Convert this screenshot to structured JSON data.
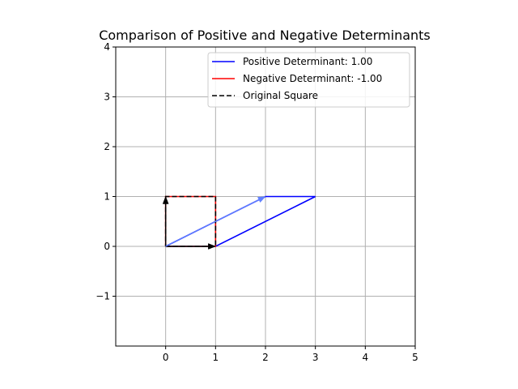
{
  "chart_data": {
    "type": "line",
    "title": "Comparison of Positive and Negative Determinants",
    "xlabel": "",
    "ylabel": "",
    "xlim": [
      -1,
      5
    ],
    "ylim": [
      -2,
      4
    ],
    "xticks": [
      0,
      1,
      2,
      3,
      4,
      5
    ],
    "yticks": [
      -1,
      0,
      1,
      2,
      3,
      4
    ],
    "xtick_labels": [
      "0",
      "1",
      "2",
      "3",
      "4",
      "5"
    ],
    "ytick_labels": [
      "−1",
      "0",
      "1",
      "2",
      "3",
      "4"
    ],
    "grid": true,
    "legend_position": "top-right",
    "series": [
      {
        "name": "Positive Determinant: 1.00",
        "color": "#0000ff",
        "style": "solid",
        "x": [
          0,
          1,
          3,
          2,
          0
        ],
        "y": [
          0,
          0,
          1,
          1,
          0
        ]
      },
      {
        "name": "Negative Determinant: -1.00",
        "color": "#ff0000",
        "style": "solid",
        "x": [
          0,
          1,
          1,
          0,
          0
        ],
        "y": [
          0,
          0,
          1,
          1,
          0
        ]
      },
      {
        "name": "Original Square",
        "color": "#000000",
        "style": "dashed",
        "x": [
          0,
          1,
          1,
          0,
          0
        ],
        "y": [
          0,
          0,
          1,
          1,
          0
        ]
      }
    ],
    "arrows": [
      {
        "x0": 0,
        "y0": 0,
        "x1": 1,
        "y1": 0,
        "color": "#000000"
      },
      {
        "x0": 0,
        "y0": 0,
        "x1": 0,
        "y1": 1,
        "color": "#000000"
      },
      {
        "x0": 0,
        "y0": 0,
        "x1": 2,
        "y1": 1,
        "color": "#6080ff"
      }
    ]
  }
}
